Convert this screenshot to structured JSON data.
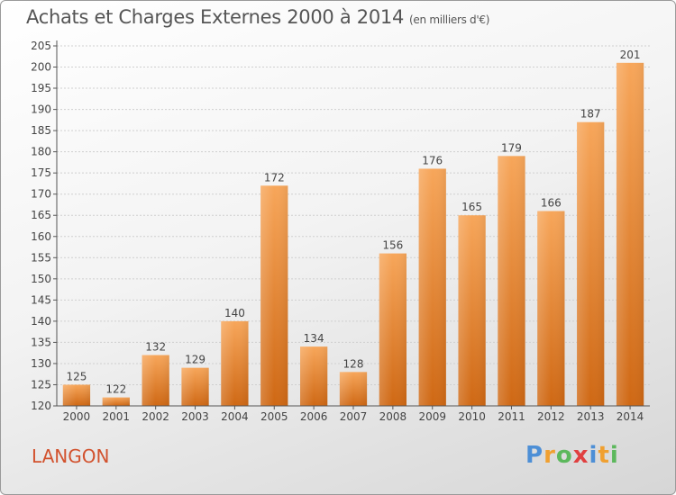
{
  "title": "Achats et Charges Externes 2000 à 2014",
  "subtitle": "(en milliers d'€)",
  "commune": "LANGON",
  "brand": "Proxiti",
  "brand_letters": [
    {
      "char": "P",
      "color": "#4d8fd6"
    },
    {
      "char": "r",
      "color": "#f0a030"
    },
    {
      "char": "o",
      "color": "#5cb85c"
    },
    {
      "char": "x",
      "color": "#e04040"
    },
    {
      "char": "i",
      "color": "#4d8fd6"
    },
    {
      "char": "t",
      "color": "#f0a030"
    },
    {
      "char": "i",
      "color": "#5cb85c"
    }
  ],
  "colors": {
    "bar_top": "#f7a65a",
    "bar_bottom": "#cf6814",
    "axis": "#555555",
    "grid": "#cfcfcf",
    "accent": "#d2522e"
  },
  "chart_data": {
    "type": "bar",
    "title": "Achats et Charges Externes 2000 à 2014",
    "subtitle": "(en milliers d'€)",
    "categories": [
      "2000",
      "2001",
      "2002",
      "2003",
      "2004",
      "2005",
      "2006",
      "2007",
      "2008",
      "2009",
      "2010",
      "2011",
      "2012",
      "2013",
      "2014"
    ],
    "values": [
      125,
      122,
      132,
      129,
      140,
      172,
      134,
      128,
      156,
      176,
      165,
      179,
      166,
      187,
      201
    ],
    "ylim": [
      120,
      205
    ],
    "yticks": [
      120,
      125,
      130,
      135,
      140,
      145,
      150,
      155,
      160,
      165,
      170,
      175,
      180,
      185,
      190,
      195,
      200,
      205
    ],
    "grid": true,
    "data_labels": true
  }
}
